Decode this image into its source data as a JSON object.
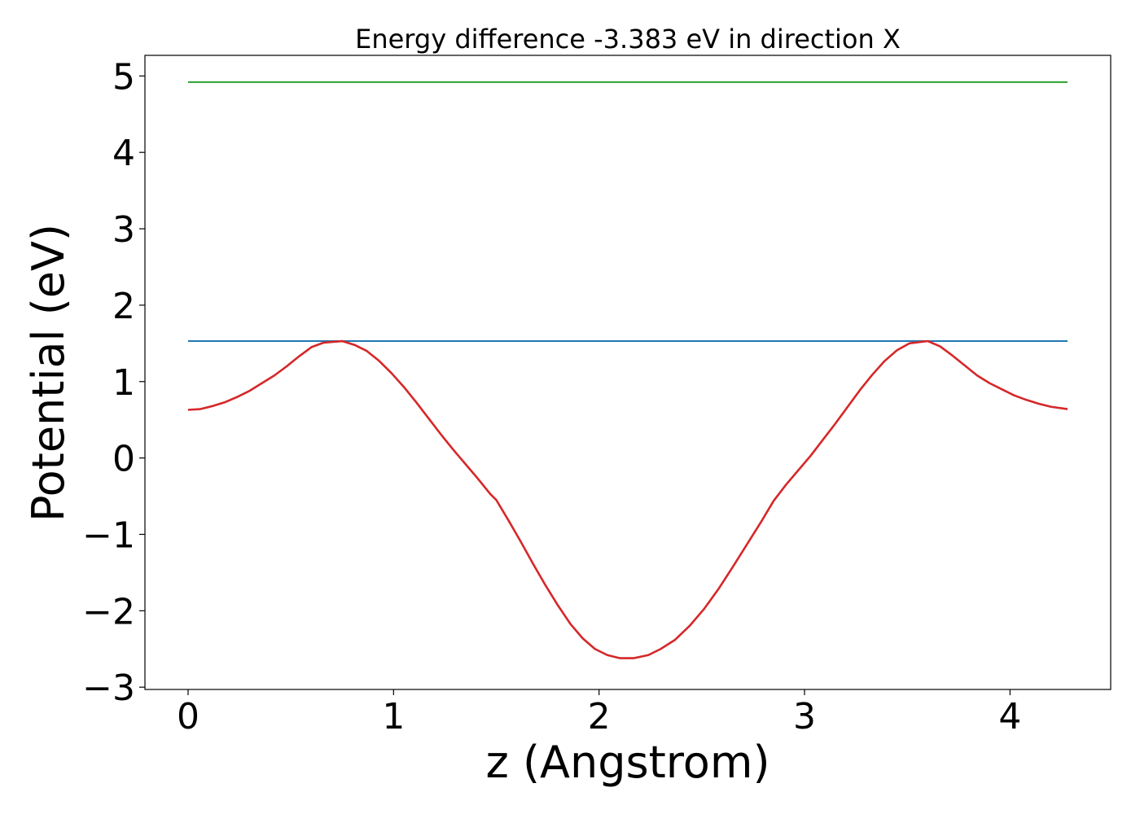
{
  "chart_data": {
    "type": "line",
    "title": "Energy difference -3.383 eV in direction X",
    "xlabel": "z (Angstrom)",
    "ylabel": "Potential (eV)",
    "xlim": [
      -0.21,
      4.49
    ],
    "ylim": [
      -3.03,
      5.27
    ],
    "x_ticks": [
      0,
      1,
      2,
      3,
      4
    ],
    "x_tick_labels": [
      "0",
      "1",
      "2",
      "3",
      "4"
    ],
    "y_ticks": [
      -3,
      -2,
      -1,
      0,
      1,
      2,
      3,
      4,
      5
    ],
    "y_tick_labels": [
      "−3",
      "−2",
      "−1",
      "0",
      "1",
      "2",
      "3",
      "4",
      "5"
    ],
    "grid": false,
    "colors": {
      "potential": "#d62728",
      "level_low": "#1f77b4",
      "level_high": "#2ca02c"
    },
    "series": [
      {
        "key": "potential",
        "x": [
          0,
          0.06,
          0.12,
          0.18,
          0.24,
          0.3,
          0.36,
          0.42,
          0.48,
          0.54,
          0.6,
          0.66,
          0.75,
          0.81,
          0.87,
          0.93,
          0.99,
          1.05,
          1.11,
          1.17,
          1.23,
          1.29,
          1.35,
          1.41,
          1.47,
          1.5,
          1.56,
          1.62,
          1.68,
          1.74,
          1.8,
          1.86,
          1.92,
          1.98,
          2.04,
          2.1,
          2.17,
          2.24,
          2.3,
          2.37,
          2.44,
          2.51,
          2.58,
          2.65,
          2.72,
          2.79,
          2.85,
          2.91,
          2.97,
          3.03,
          3.09,
          3.15,
          3.21,
          3.27,
          3.33,
          3.39,
          3.45,
          3.51,
          3.6,
          3.66,
          3.72,
          3.78,
          3.84,
          3.9,
          3.96,
          4.02,
          4.08,
          4.14,
          4.2,
          4.28
        ],
        "y": [
          0.63,
          0.64,
          0.68,
          0.73,
          0.8,
          0.88,
          0.98,
          1.08,
          1.2,
          1.33,
          1.45,
          1.51,
          1.53,
          1.48,
          1.4,
          1.27,
          1.11,
          0.93,
          0.73,
          0.52,
          0.31,
          0.11,
          -0.08,
          -0.27,
          -0.47,
          -0.55,
          -0.82,
          -1.1,
          -1.39,
          -1.67,
          -1.93,
          -2.17,
          -2.36,
          -2.5,
          -2.58,
          -2.62,
          -2.62,
          -2.58,
          -2.5,
          -2.38,
          -2.2,
          -1.98,
          -1.72,
          -1.43,
          -1.13,
          -0.83,
          -0.56,
          -0.35,
          -0.16,
          0.03,
          0.24,
          0.45,
          0.67,
          0.89,
          1.09,
          1.27,
          1.41,
          1.5,
          1.53,
          1.46,
          1.34,
          1.21,
          1.08,
          0.98,
          0.9,
          0.82,
          0.76,
          0.71,
          0.67,
          0.64
        ]
      },
      {
        "key": "level_low",
        "x": [
          0,
          4.28
        ],
        "y": [
          1.53,
          1.53
        ]
      },
      {
        "key": "level_high",
        "x": [
          0,
          4.28
        ],
        "y": [
          4.92,
          4.92
        ]
      }
    ]
  }
}
